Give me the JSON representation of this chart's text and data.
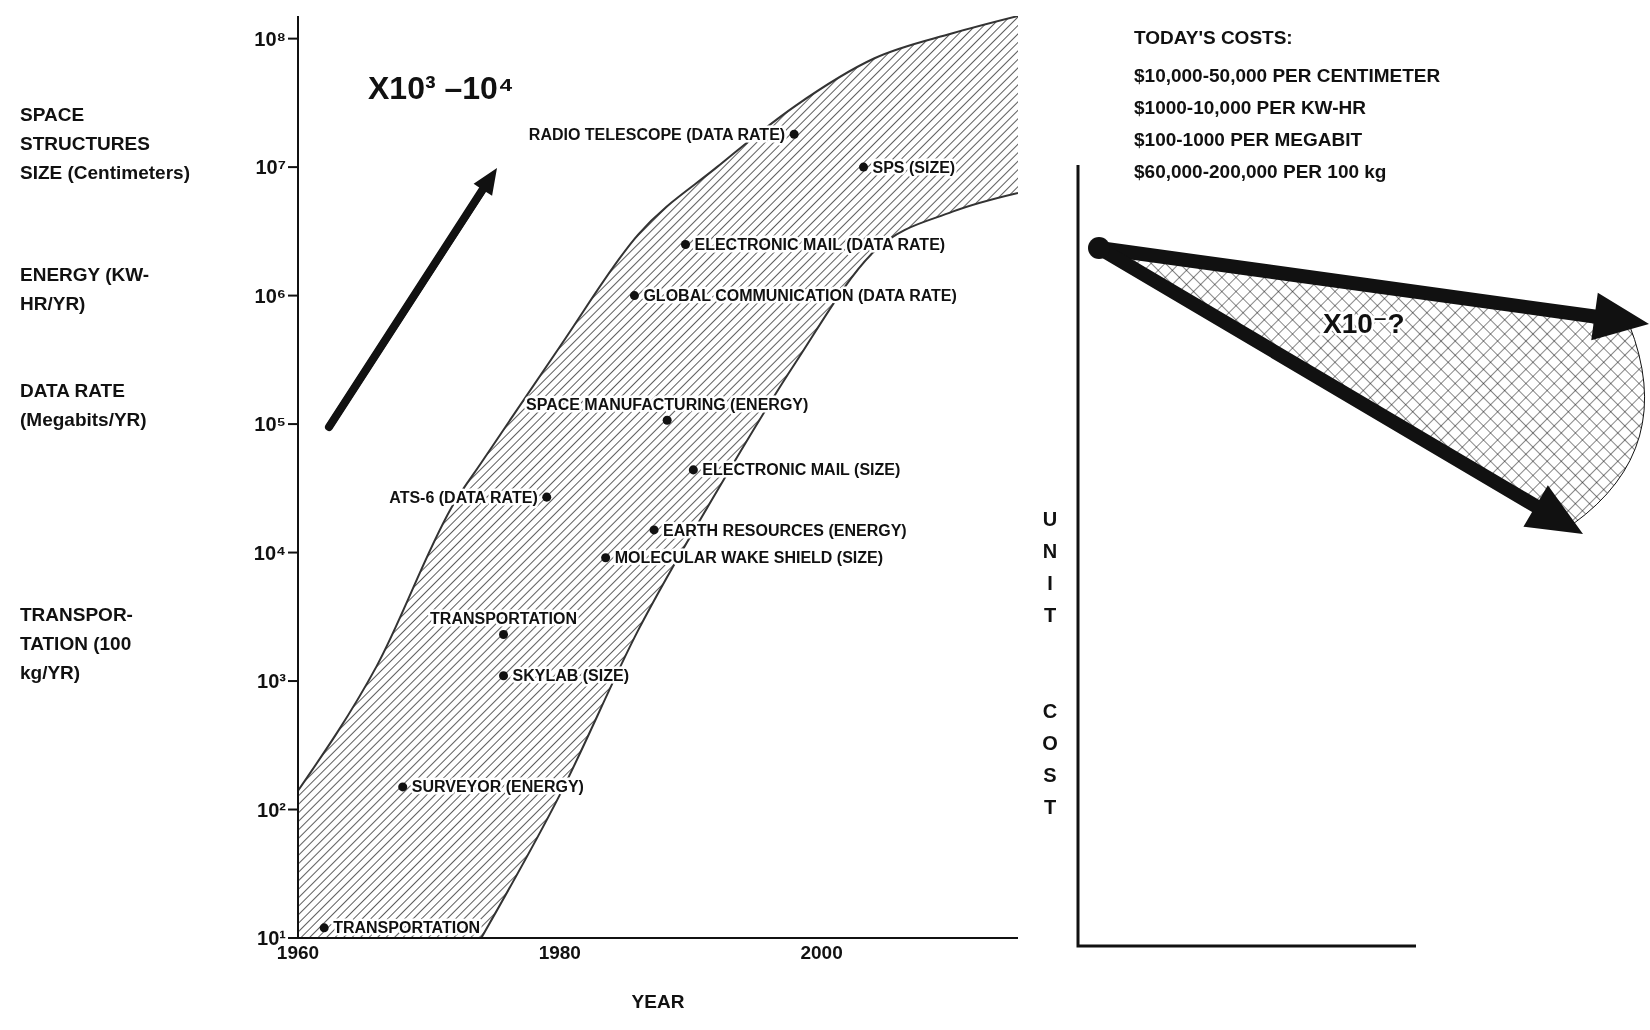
{
  "chart_data": [
    {
      "type": "scatter",
      "xlabel": "YEAR",
      "xlim": [
        1960,
        2015
      ],
      "xticks": [
        1960,
        1980,
        2000
      ],
      "ylim": [
        10,
        150000000
      ],
      "log": "y",
      "yticks": [
        {
          "value": 10,
          "label": "10¹"
        },
        {
          "value": 100,
          "label": "10²"
        },
        {
          "value": 1000,
          "label": "10³"
        },
        {
          "value": 10000,
          "label": "10⁴"
        },
        {
          "value": 100000,
          "label": "10⁵"
        },
        {
          "value": 1000000,
          "label": "10⁶"
        },
        {
          "value": 10000000,
          "label": "10⁷"
        },
        {
          "value": 100000000,
          "label": "10⁸"
        }
      ],
      "grid": false,
      "legend": false,
      "series": [
        {
          "type": "area",
          "color": "#333333",
          "x": [
            1960,
            1966,
            1972,
            1974,
            1980,
            1986,
            1992,
            1998,
            2004,
            2010,
            2015
          ],
          "values": [
            140,
            1300,
            25000,
            50000,
            400000,
            3000000,
            10000000,
            30000000,
            70000000,
            110000000,
            150000000
          ]
        },
        {
          "type": "area",
          "color": "#333333",
          "x": [
            1974,
            1980,
            1986,
            1992,
            1998,
            2004,
            2010,
            2015
          ],
          "values": [
            10,
            130,
            2500,
            30000,
            300000,
            2200000,
            4500000,
            6300000
          ]
        },
        {
          "type": "scatter",
          "color": "#111111",
          "marker": "circle",
          "x": [
            1962,
            1968,
            1975.7,
            1975.7,
            1979,
            1983.5,
            1987.2,
            1990.2,
            1988.2,
            1985.7,
            1989.6,
            1997.9,
            2003.2
          ],
          "values": [
            12,
            150,
            1100,
            2300,
            27000,
            9100,
            15000,
            44000,
            107000,
            1000000,
            2500000,
            18000000,
            10000000
          ]
        }
      ],
      "annotations": [
        "SPACE STRUCTURES SIZE (Centimeters)",
        "ENERGY (KW-HR/YR)",
        "DATA RATE (Megabits/YR)",
        "TRANSPOR-TATION (100 kg/YR)",
        "X10³ –10⁴",
        {
          "text": "TRANSPORTATION",
          "x": 1962,
          "y": 12
        },
        {
          "text": "SURVEYOR (ENERGY)",
          "x": 1968,
          "y": 150
        },
        {
          "text": "SKYLAB (SIZE)",
          "x": 1975.7,
          "y": 1100
        },
        {
          "text": "TRANSPORTATION",
          "x": 1975.7,
          "y": 2300
        },
        {
          "text": "ATS-6 (DATA RATE)",
          "x": 1979,
          "y": 27000
        },
        {
          "text": "MOLECULAR WAKE SHIELD (SIZE)",
          "x": 1983.5,
          "y": 9100
        },
        {
          "text": "EARTH RESOURCES (ENERGY)",
          "x": 1987.2,
          "y": 15000
        },
        {
          "text": "ELECTRONIC MAIL (SIZE)",
          "x": 1990.2,
          "y": 44000
        },
        {
          "text": "SPACE MANUFACTURING (ENERGY)",
          "x": 1988.2,
          "y": 107000
        },
        {
          "text": "GLOBAL COMMUNICATION (DATA RATE)",
          "x": 1985.7,
          "y": 1000000
        },
        {
          "text": "ELECTRONIC MAIL (DATA RATE)",
          "x": 1989.6,
          "y": 2500000
        },
        {
          "text": "RADIO TELESCOPE (DATA RATE)",
          "x": 1997.9,
          "y": 18000000
        },
        {
          "text": "SPS (SIZE)",
          "x": 2003.2,
          "y": 10000000
        }
      ]
    },
    {
      "type": "other",
      "ylabel": "UNIT COST",
      "annotations": [
        "TODAY'S COSTS:",
        "$10,000-50,000 PER CENTIMETER",
        "$1000-10,000 PER KW-HR",
        "$100-1000 PER MEGABIT",
        "$60,000-200,000 PER 100 kg",
        "X10⁻?"
      ]
    }
  ]
}
